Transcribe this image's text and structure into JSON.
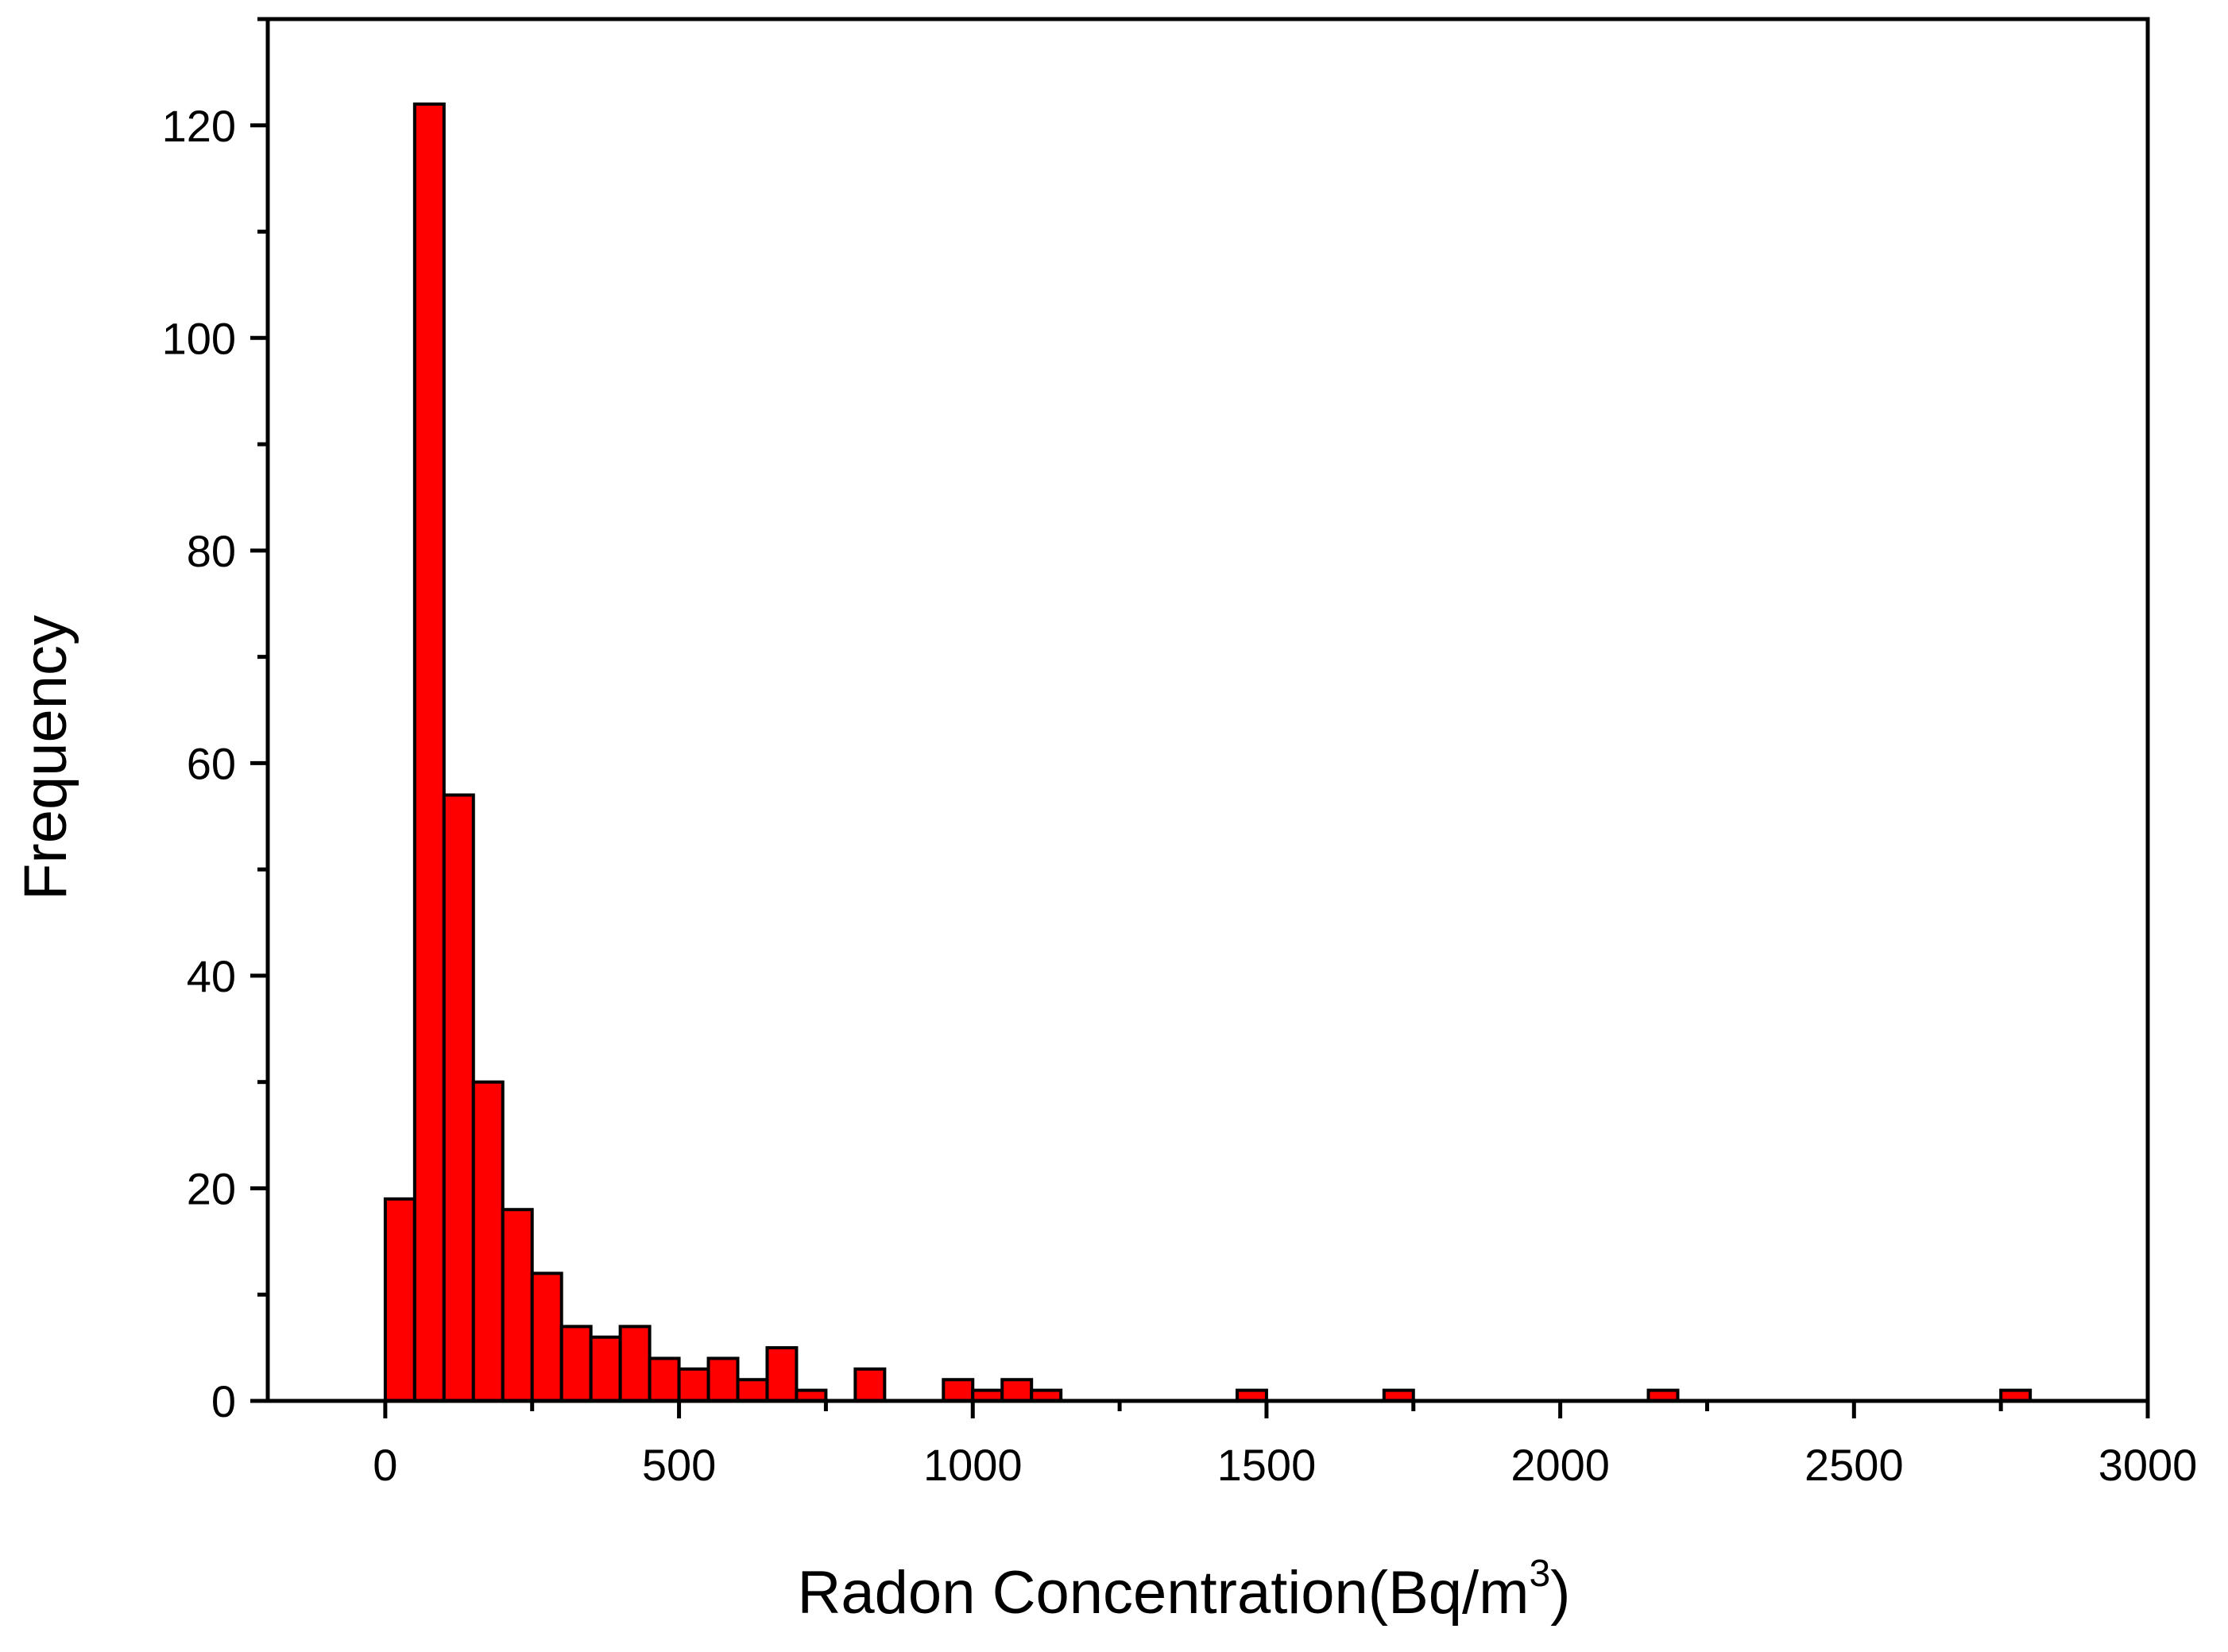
{
  "chart_data": {
    "type": "bar",
    "xlabel_main": "Radon Concentration(Bq/m",
    "xlabel_sup": "3",
    "xlabel_close": ")",
    "ylabel": "Frequency",
    "xlim": [
      -200,
      3000
    ],
    "ylim": [
      0,
      130
    ],
    "xticks": [
      0,
      500,
      1000,
      1500,
      2000,
      2500,
      3000
    ],
    "yticks": [
      0,
      20,
      40,
      60,
      80,
      100,
      120
    ],
    "bin_width": 50,
    "bars": [
      {
        "x": 0,
        "value": 19
      },
      {
        "x": 50,
        "value": 122
      },
      {
        "x": 100,
        "value": 57
      },
      {
        "x": 150,
        "value": 30
      },
      {
        "x": 200,
        "value": 18
      },
      {
        "x": 250,
        "value": 12
      },
      {
        "x": 300,
        "value": 7
      },
      {
        "x": 350,
        "value": 6
      },
      {
        "x": 400,
        "value": 7
      },
      {
        "x": 450,
        "value": 4
      },
      {
        "x": 500,
        "value": 3
      },
      {
        "x": 550,
        "value": 4
      },
      {
        "x": 600,
        "value": 2
      },
      {
        "x": 650,
        "value": 5
      },
      {
        "x": 700,
        "value": 1
      },
      {
        "x": 800,
        "value": 3
      },
      {
        "x": 950,
        "value": 2
      },
      {
        "x": 1000,
        "value": 1
      },
      {
        "x": 1050,
        "value": 2
      },
      {
        "x": 1100,
        "value": 1
      },
      {
        "x": 1450,
        "value": 1
      },
      {
        "x": 1700,
        "value": 1
      },
      {
        "x": 2150,
        "value": 1
      },
      {
        "x": 2750,
        "value": 1
      }
    ],
    "bar_color": "#ff0000",
    "edge_color": "#000000",
    "grid": false,
    "legend": "none"
  }
}
